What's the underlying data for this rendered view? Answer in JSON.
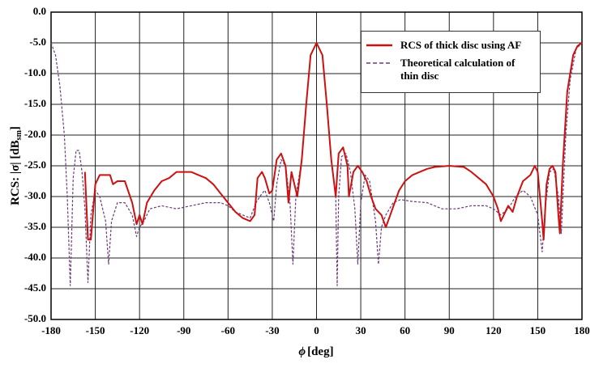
{
  "chart_data": {
    "type": "line",
    "ylabel": [
      "RCS:  |σ| [dB",
      "sm",
      "]"
    ],
    "xlabel": [
      "ϕ",
      "[deg]"
    ],
    "xlim": [
      -180,
      180
    ],
    "xticks": [
      -180,
      -150,
      -120,
      -90,
      -60,
      -30,
      0,
      30,
      60,
      90,
      120,
      150,
      180
    ],
    "ylim": [
      -50,
      0
    ],
    "yticks": [
      {
        "value": 0,
        "label": "0.0"
      },
      {
        "value": -5,
        "label": "-5.0"
      },
      {
        "value": -10,
        "label": "-10.0"
      },
      {
        "value": -15,
        "label": "-15.0"
      },
      {
        "value": -20,
        "label": "-20.0"
      },
      {
        "value": -25,
        "label": "-25.0"
      },
      {
        "value": -30,
        "label": "-30.0"
      },
      {
        "value": -35,
        "label": "-35.0"
      },
      {
        "value": -40,
        "label": "-40.0"
      },
      {
        "value": -45,
        "label": "-45.0"
      },
      {
        "value": -50,
        "label": "-50.0"
      }
    ],
    "grid": true,
    "legend": "upper right",
    "series": [
      {
        "name": "Theoretical calculation of thin disc",
        "color": "#6a3a7a",
        "dashed": true,
        "x": [
          -180,
          -177,
          -174,
          -171,
          -169,
          -167,
          -165,
          -163,
          -161,
          -159,
          -157,
          -155,
          -153,
          -150,
          -147,
          -143,
          -141,
          -139,
          -135,
          -130,
          -125,
          -122,
          -120,
          -117,
          -113,
          -105,
          -95,
          -85,
          -75,
          -65,
          -60,
          -55,
          -50,
          -45,
          -41,
          -37,
          -35,
          -32,
          -29,
          -27,
          -24,
          -21,
          -18,
          -16,
          -14,
          -10,
          -7,
          -4,
          0,
          4,
          7,
          10,
          13,
          14,
          15,
          17,
          20,
          23,
          26,
          28,
          30,
          33,
          36,
          40,
          42,
          44,
          47,
          52,
          57,
          65,
          75,
          85,
          95,
          105,
          115,
          120,
          125,
          130,
          135,
          140,
          145,
          150,
          153,
          155,
          158,
          161,
          164,
          166,
          169,
          172,
          176,
          180
        ],
        "values": [
          -5,
          -7,
          -12,
          -20,
          -30,
          -44.5,
          -27,
          -22.5,
          -22.5,
          -26,
          -32,
          -44,
          -33,
          -29,
          -30,
          -34,
          -41,
          -34,
          -31,
          -31,
          -33,
          -36.5,
          -35,
          -34,
          -32,
          -31.5,
          -32,
          -31.5,
          -31,
          -31,
          -31.5,
          -32.5,
          -33,
          -33.5,
          -31,
          -29.5,
          -29,
          -31,
          -34,
          -28,
          -24,
          -25,
          -31,
          -41,
          -30,
          -24,
          -15,
          -7,
          -5,
          -7,
          -15,
          -24,
          -30,
          -44.5,
          -30,
          -23.5,
          -23,
          -26,
          -32,
          -41,
          -31,
          -26.5,
          -27.5,
          -34,
          -41,
          -35,
          -33,
          -31,
          -30.5,
          -30.8,
          -31,
          -32,
          -32,
          -31.5,
          -31.5,
          -32,
          -33,
          -32,
          -30,
          -29,
          -30,
          -33,
          -39,
          -32,
          -26,
          -25.5,
          -30,
          -36,
          -20,
          -11,
          -6,
          -5
        ]
      },
      {
        "name": "RCS of thick disc using AF",
        "color": "#cc1111",
        "dashed": false,
        "x": [
          -157,
          -155,
          -153,
          -150,
          -147,
          -140,
          -138,
          -135,
          -130,
          -125,
          -122,
          -120,
          -118,
          -115,
          -110,
          -105,
          -100,
          -95,
          -90,
          -85,
          -80,
          -75,
          -70,
          -65,
          -60,
          -55,
          -50,
          -45,
          -42,
          -40,
          -37,
          -35,
          -32,
          -30,
          -27,
          -24,
          -21,
          -19,
          -17,
          -13,
          -10,
          -7,
          -4,
          0,
          4,
          7,
          10,
          13,
          15,
          18,
          21,
          22,
          25,
          28,
          31,
          34,
          37,
          40,
          44,
          47,
          50,
          53,
          56,
          60,
          65,
          70,
          75,
          80,
          90,
          100,
          105,
          110,
          115,
          120,
          123,
          125,
          127,
          130,
          133,
          136,
          140,
          145,
          148,
          150,
          153,
          154,
          156,
          158,
          160,
          162,
          164,
          165,
          167,
          170,
          174,
          177,
          180
        ],
        "values": [
          -26,
          -37,
          -37,
          -28,
          -26.5,
          -26.5,
          -28,
          -27.5,
          -27.5,
          -31,
          -34.5,
          -33,
          -34.5,
          -31,
          -29,
          -27.5,
          -27,
          -26,
          -26,
          -26,
          -26.5,
          -27,
          -28,
          -29.5,
          -31,
          -32.5,
          -33.5,
          -34,
          -33,
          -27,
          -26,
          -27,
          -29.5,
          -29,
          -24,
          -23,
          -25,
          -31,
          -26,
          -30,
          -24,
          -15,
          -7,
          -5,
          -7,
          -15,
          -24,
          -30,
          -23,
          -22,
          -25,
          -30,
          -26,
          -25,
          -26,
          -27.5,
          -30,
          -32,
          -33,
          -35,
          -33,
          -31,
          -29,
          -27.5,
          -26.5,
          -26,
          -25.5,
          -25.2,
          -25,
          -25.2,
          -26,
          -27,
          -28,
          -30,
          -32,
          -34,
          -33,
          -31.5,
          -32.5,
          -30,
          -27.5,
          -26.5,
          -25,
          -26,
          -34,
          -37,
          -28,
          -25.5,
          -25,
          -26,
          -33,
          -36,
          -25,
          -13,
          -7,
          -5.5,
          -5
        ]
      }
    ]
  }
}
